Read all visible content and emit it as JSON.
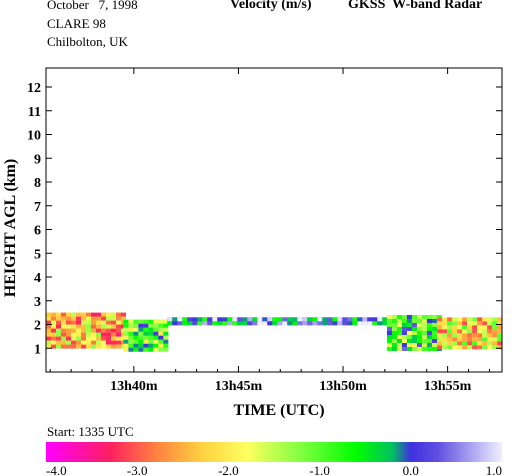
{
  "header": {
    "date": "October   7, 1998",
    "campaign": "CLARE 98",
    "site": "Chilbolton, UK",
    "quantity": "Velocity (m/s)",
    "instrument": "GKSS  W-band Radar"
  },
  "start_text": "Start: 1335 UTC",
  "chart_data": {
    "type": "heatmap",
    "title": "Velocity (m/s)",
    "xlabel": "TIME (UTC)",
    "ylabel": "HEIGHT AGL (km)",
    "x_unit": "minutes UTC",
    "xlim": [
      35.8,
      57.6
    ],
    "ylim": [
      0,
      12.8
    ],
    "x_ticks": [
      40,
      45,
      50,
      55
    ],
    "x_tick_labels": [
      "13h40m",
      "13h45m",
      "13h50m",
      "13h55m"
    ],
    "y_ticks": [
      1,
      2,
      3,
      4,
      5,
      6,
      7,
      8,
      9,
      10,
      11,
      12
    ],
    "y_tick_labels": [
      "1",
      "2",
      "3",
      "4",
      "5",
      "6",
      "7",
      "8",
      "9",
      "10",
      "11",
      "12"
    ],
    "colorbar": {
      "vmin": -4.0,
      "vmax": 1.0,
      "ticks": [
        -4.0,
        -3.0,
        -2.0,
        -1.0,
        0.0,
        1.0
      ],
      "tick_labels": [
        "-4.0",
        "-3.0",
        "-2.0",
        "-1.0",
        "0.0",
        "1.0"
      ],
      "stops": [
        {
          "v": -4.0,
          "color": "#ff00ff"
        },
        {
          "v": -3.3,
          "color": "#ff2060"
        },
        {
          "v": -2.8,
          "color": "#ff8040"
        },
        {
          "v": -2.3,
          "color": "#ffd040"
        },
        {
          "v": -1.8,
          "color": "#ffff60"
        },
        {
          "v": -1.2,
          "color": "#80ff40"
        },
        {
          "v": -0.6,
          "color": "#00ff00"
        },
        {
          "v": -0.2,
          "color": "#00c060"
        },
        {
          "v": 0.0,
          "color": "#4030e0"
        },
        {
          "v": 0.3,
          "color": "#6050e0"
        },
        {
          "v": 1.0,
          "color": "#f0f0ff"
        }
      ]
    },
    "grid": false,
    "echo_regions": [
      {
        "x": [
          35.8,
          39.5
        ],
        "base_km": 1.0,
        "top_km": 2.5,
        "value": -2.3
      },
      {
        "x": [
          39.5,
          41.6
        ],
        "base_km": 1.0,
        "top_km": 2.2,
        "value": -1.0
      },
      {
        "x": [
          41.6,
          52.1
        ],
        "base_km": 2.0,
        "top_km": 2.3,
        "value": 0.2
      },
      {
        "x": [
          52.1,
          54.5
        ],
        "base_km": 0.9,
        "top_km": 2.4,
        "value": -0.7
      },
      {
        "x": [
          54.5,
          57.6
        ],
        "base_km": 1.0,
        "top_km": 2.3,
        "value": -2.0
      }
    ]
  }
}
